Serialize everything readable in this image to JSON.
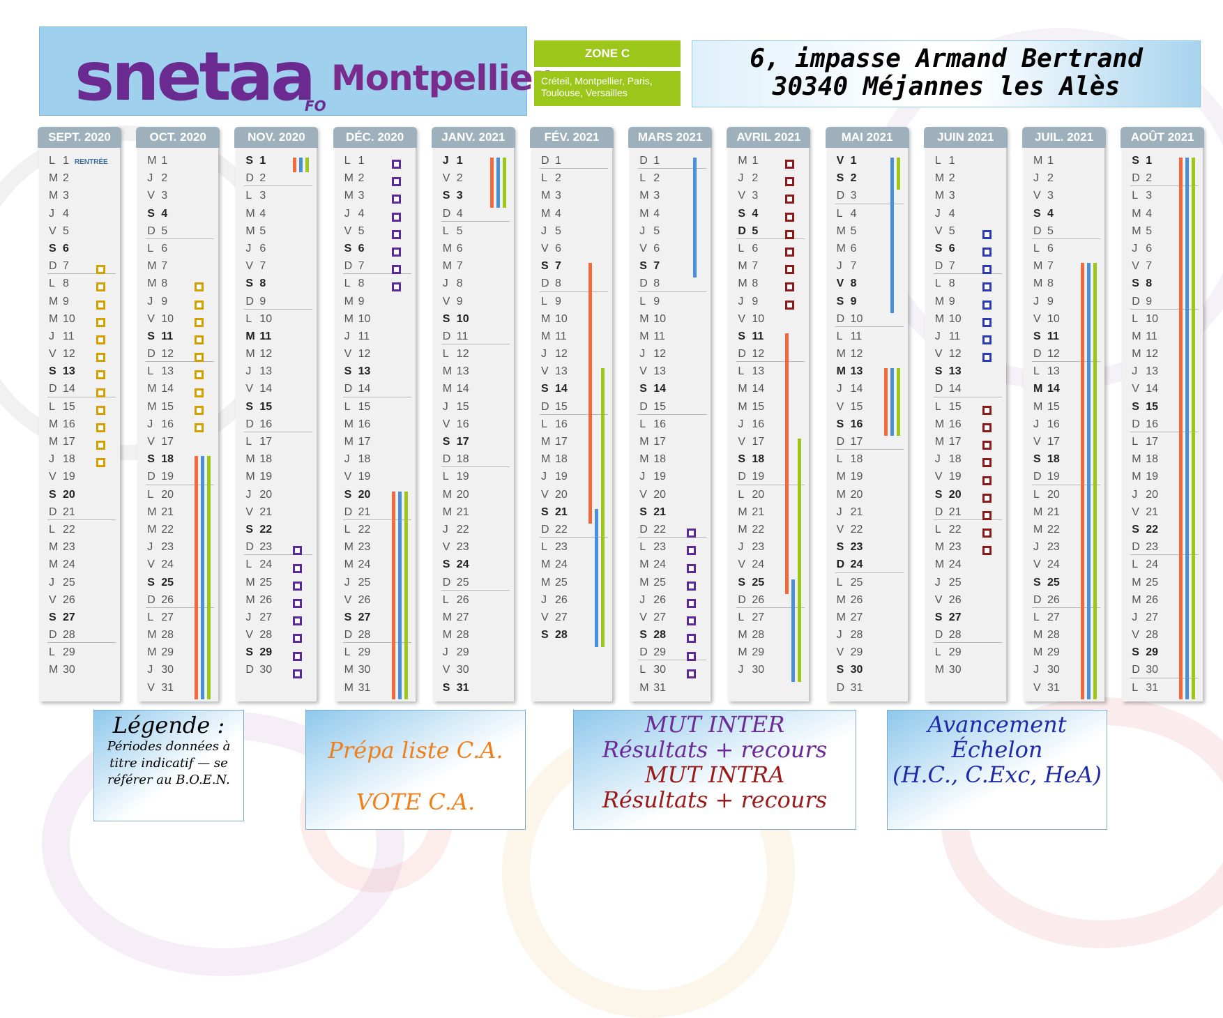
{
  "header": {
    "logo_text": "snetaa",
    "logo_sub": "FO",
    "city": "Montpellier",
    "zone_title": "ZONE C",
    "zone_cities": "Créteil, Montpellier, Paris, Toulouse, Versailles",
    "address_line1": "6, impasse Armand Bertrand",
    "address_line2": "30340 Méjannes les Alès"
  },
  "colors": {
    "orange": "#f26a3b",
    "blue": "#4a90d9",
    "green": "#9cc71a",
    "yellow_square": "#d4a000",
    "purple_square": "#5b2a96",
    "red_square": "#8b1a1a",
    "navy_square": "#2d3ab8"
  },
  "calendar": {
    "months": [
      {
        "name": "SEPT. 2020",
        "start": 1,
        "days": 30,
        "bold": [
          6,
          13,
          20,
          27
        ],
        "note_day": 1,
        "note": "RENTRÉE",
        "bars": [],
        "squares": [
          {
            "color": "yellow",
            "from": 7,
            "to": 18
          }
        ]
      },
      {
        "name": "OCT. 2020",
        "start": 3,
        "days": 31,
        "bold": [
          4,
          11,
          18,
          25
        ],
        "bars": [
          {
            "color": "orange",
            "from": 18,
            "to": 31
          },
          {
            "color": "blue",
            "from": 18,
            "to": 31
          },
          {
            "color": "green",
            "from": 18,
            "to": 31
          }
        ],
        "squares": [
          {
            "color": "yellow",
            "from": 8,
            "to": 16
          }
        ]
      },
      {
        "name": "NOV. 2020",
        "start": 6,
        "days": 30,
        "bold": [
          1,
          8,
          11,
          15,
          22,
          29
        ],
        "bars": [
          {
            "color": "orange",
            "from": 1,
            "to": 1
          },
          {
            "color": "blue",
            "from": 1,
            "to": 1
          },
          {
            "color": "green",
            "from": 1,
            "to": 1
          }
        ],
        "squares": [
          {
            "color": "purple",
            "from": 23,
            "to": 30
          }
        ]
      },
      {
        "name": "DÉC. 2020",
        "start": 1,
        "days": 31,
        "bold": [
          6,
          13,
          20,
          27
        ],
        "bars": [
          {
            "color": "orange",
            "from": 20,
            "to": 31
          },
          {
            "color": "blue",
            "from": 20,
            "to": 31
          },
          {
            "color": "green",
            "from": 20,
            "to": 31
          }
        ],
        "squares": [
          {
            "color": "purple",
            "from": 1,
            "to": 8
          }
        ]
      },
      {
        "name": "JANV. 2021",
        "start": 4,
        "days": 31,
        "bold": [
          1,
          3,
          10,
          17,
          24,
          31
        ],
        "bars": [
          {
            "color": "orange",
            "from": 1,
            "to": 3
          },
          {
            "color": "blue",
            "from": 1,
            "to": 3
          },
          {
            "color": "green",
            "from": 1,
            "to": 3
          }
        ],
        "squares": []
      },
      {
        "name": "FÉV. 2021",
        "start": 0,
        "days": 28,
        "bold": [
          7,
          14,
          21,
          28
        ],
        "bars": [
          {
            "color": "orange",
            "from": 7,
            "to": 21
          },
          {
            "color": "blue",
            "from": 21,
            "to": 28
          },
          {
            "color": "green",
            "from": 13,
            "to": 28
          }
        ],
        "squares": []
      },
      {
        "name": "MARS 2021",
        "start": 0,
        "days": 31,
        "bold": [
          7,
          14,
          21,
          28
        ],
        "bars": [
          {
            "color": "blue",
            "from": 1,
            "to": 7
          }
        ],
        "squares": [
          {
            "color": "purple",
            "from": 22,
            "to": 30
          }
        ]
      },
      {
        "name": "AVRIL 2021",
        "start": 3,
        "days": 30,
        "bold": [
          4,
          5,
          11,
          18,
          25
        ],
        "bars": [
          {
            "color": "orange",
            "from": 11,
            "to": 25
          },
          {
            "color": "blue",
            "from": 25,
            "to": 30
          },
          {
            "color": "green",
            "from": 17,
            "to": 30
          }
        ],
        "squares": [
          {
            "color": "red",
            "from": 1,
            "to": 9
          }
        ]
      },
      {
        "name": "MAI 2021",
        "start": 5,
        "days": 31,
        "bold": [
          1,
          2,
          8,
          9,
          13,
          16,
          23,
          24,
          30
        ],
        "bars": [
          {
            "color": "blue",
            "from": 1,
            "to": 9
          },
          {
            "color": "green",
            "from": 1,
            "to": 2
          },
          {
            "color": "orange",
            "from": 13,
            "to": 16
          },
          {
            "color": "blue",
            "from": 13,
            "to": 16
          },
          {
            "color": "green",
            "from": 13,
            "to": 16
          }
        ],
        "squares": []
      },
      {
        "name": "JUIN 2021",
        "start": 1,
        "days": 30,
        "bold": [
          6,
          13,
          20,
          27
        ],
        "bars": [],
        "squares": [
          {
            "color": "navy",
            "from": 5,
            "to": 12
          },
          {
            "color": "red",
            "from": 15,
            "to": 23
          }
        ]
      },
      {
        "name": "JUIL. 2021",
        "start": 3,
        "days": 31,
        "bold": [
          4,
          11,
          14,
          18,
          25
        ],
        "bars": [
          {
            "color": "orange",
            "from": 7,
            "to": 31
          },
          {
            "color": "blue",
            "from": 7,
            "to": 31
          },
          {
            "color": "green",
            "from": 7,
            "to": 31
          }
        ],
        "squares": []
      },
      {
        "name": "AOÛT 2021",
        "start": 6,
        "days": 31,
        "bold": [
          1,
          8,
          15,
          22,
          29
        ],
        "bars": [
          {
            "color": "orange",
            "from": 1,
            "to": 31
          },
          {
            "color": "blue",
            "from": 1,
            "to": 31
          },
          {
            "color": "green",
            "from": 1,
            "to": 31
          }
        ],
        "squares": []
      }
    ],
    "weekday_letters": [
      "D",
      "L",
      "M",
      "M",
      "J",
      "V",
      "S"
    ]
  },
  "legend": {
    "title": "Légende :",
    "subtitle": "Périodes données à titre indicatif — se référer au B.O.E.N.",
    "box2_line1": "Prépa liste C.A.",
    "box2_line2": "VOTE C.A.",
    "box3_line1": "MUT INTER",
    "box3_line2": "Résultats + recours",
    "box3_line3": "MUT INTRA",
    "box3_line4": "Résultats + recours",
    "box4_line1": "Avancement",
    "box4_line2": "Échelon",
    "box4_line3": "(H.C., C.Exc, HeA)"
  }
}
